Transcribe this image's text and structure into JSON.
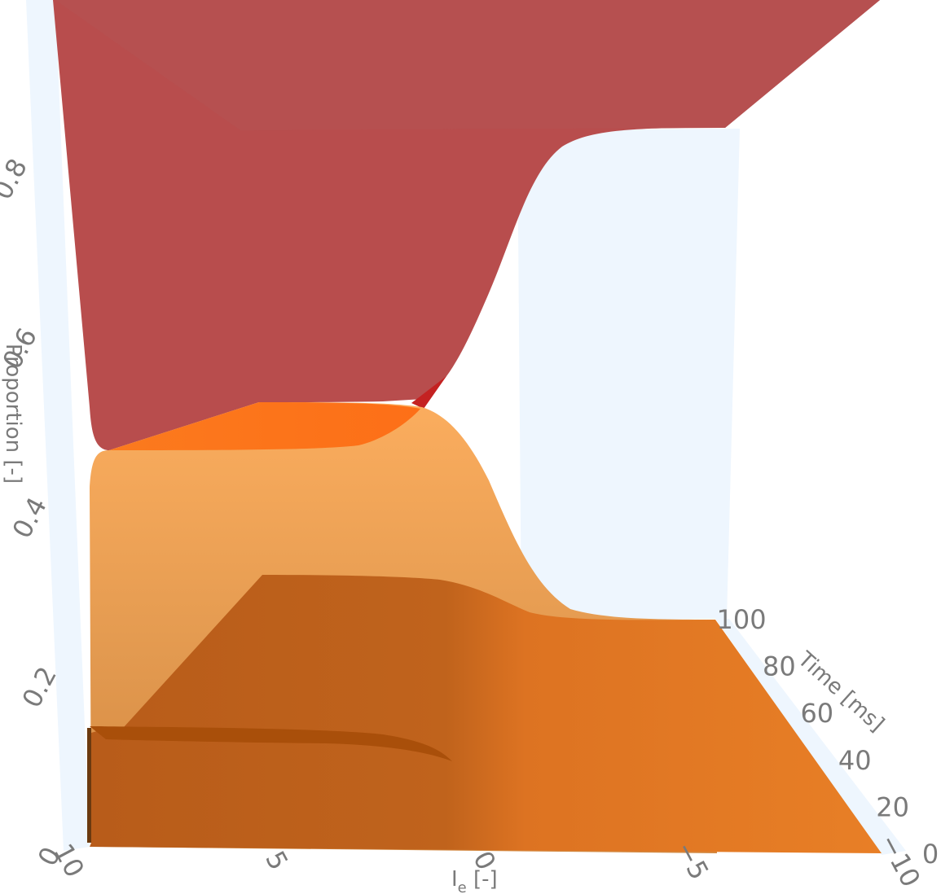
{
  "chart_data": {
    "type": "surface",
    "axes": {
      "x": {
        "title": "I",
        "title_sub": "e",
        "title_suffix": " [-]",
        "range": [
          10,
          -10
        ],
        "ticks": [
          10,
          5,
          0,
          -5,
          -10
        ],
        "tick_labels": [
          "10",
          "5",
          "0",
          "−5",
          "−10"
        ]
      },
      "y": {
        "title": "Time [ms]",
        "range": [
          0,
          100
        ],
        "ticks": [
          0,
          20,
          40,
          60,
          80,
          100
        ],
        "tick_labels": [
          "0",
          "20",
          "40",
          "60",
          "80",
          "100"
        ]
      },
      "z": {
        "title": "Proportion [-]",
        "range": [
          0,
          1
        ],
        "ticks": [
          0,
          0.2,
          0.4,
          0.6,
          0.8
        ],
        "tick_labels": [
          "0",
          "0.2",
          "0.4",
          "0.6",
          "0.8"
        ]
      }
    },
    "series": [
      {
        "color": "#b84d4d",
        "values_at_t100": [
          {
            "x": 10,
            "z": 0.5
          },
          {
            "x": 5,
            "z": 0.51
          },
          {
            "x": 2,
            "z": 0.53
          },
          {
            "x": 0,
            "z": 0.58
          },
          {
            "x": -2,
            "z": 0.72
          },
          {
            "x": -4,
            "z": 0.86
          },
          {
            "x": -6,
            "z": 0.88
          }
        ]
      },
      {
        "color": "#f9a24e",
        "values_at_t100": [
          {
            "x": 10,
            "z": 0.46
          },
          {
            "x": 5,
            "z": 0.47
          },
          {
            "x": 2,
            "z": 0.48
          },
          {
            "x": 0,
            "z": 0.43
          },
          {
            "x": -2,
            "z": 0.33
          },
          {
            "x": -4,
            "z": 0.26
          },
          {
            "x": -6,
            "z": 0.25
          }
        ]
      },
      {
        "color": "#c8651d",
        "values_at_t100": [
          {
            "x": 10,
            "z": 0.15
          },
          {
            "x": 5,
            "z": 0.15
          },
          {
            "x": 2,
            "z": 0.14
          },
          {
            "x": 0,
            "z": 0.11
          },
          {
            "x": -2,
            "z": 0.09
          },
          {
            "x": -4,
            "z": 0.08
          },
          {
            "x": -6,
            "z": 0.08
          }
        ]
      }
    ],
    "grid": true,
    "background_color": "#eef6fe"
  }
}
